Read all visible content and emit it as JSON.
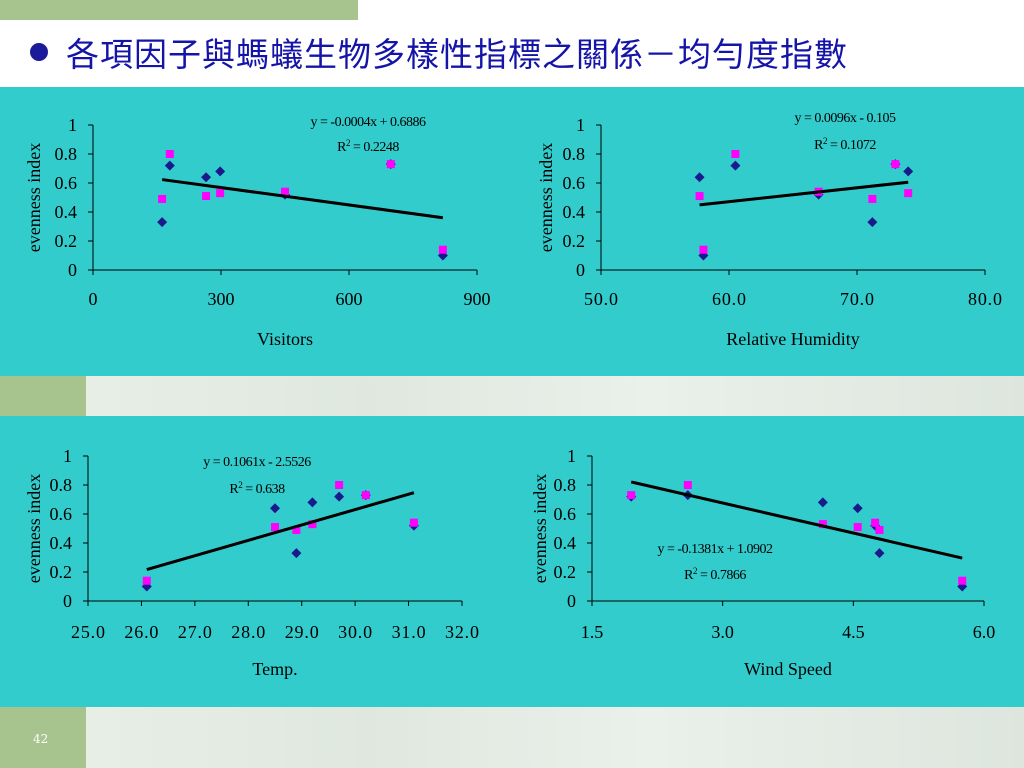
{
  "slide": {
    "title": "各項因子與螞蟻生物多樣性指標之關係－均勻度指數",
    "page_number": "42"
  },
  "colors": {
    "panel_bg": "#33cccc",
    "series_diamond": "#1a1a8c",
    "series_square": "#ff00ff",
    "title_text": "#1414a8",
    "accent_green": "#a7c48e"
  },
  "chart_data": [
    {
      "type": "scatter",
      "xlabel": "Visitors",
      "ylabel": "evenness index",
      "xlim": [
        0,
        900
      ],
      "ylim": [
        0,
        1
      ],
      "x_ticks": [
        "0",
        "300",
        "600",
        "900"
      ],
      "y_ticks": [
        "0",
        "0.2",
        "0.4",
        "0.6",
        "0.8",
        "1"
      ],
      "series": [
        {
          "marker": "diamond",
          "points": [
            [
              162,
              0.33
            ],
            [
              180,
              0.72
            ],
            [
              265,
              0.64
            ],
            [
              298,
              0.68
            ],
            [
              450,
              0.52
            ],
            [
              698,
              0.73
            ],
            [
              820,
              0.1
            ]
          ]
        },
        {
          "marker": "square",
          "points": [
            [
              162,
              0.49
            ],
            [
              180,
              0.8
            ],
            [
              265,
              0.51
            ],
            [
              298,
              0.53
            ],
            [
              450,
              0.54
            ],
            [
              698,
              0.73
            ],
            [
              820,
              0.14
            ]
          ]
        }
      ],
      "trendline": {
        "x": [
          162,
          820
        ],
        "slope": -0.0004,
        "intercept": 0.6886
      },
      "equation": "y = -0.0004x + 0.6886",
      "r2_label": "R",
      "r2_value": " = 0.2248",
      "annotation_pos": "top-right"
    },
    {
      "type": "scatter",
      "xlabel": "Relative Humidity",
      "ylabel": "evenness index",
      "xlim": [
        50,
        80
      ],
      "ylim": [
        0,
        1
      ],
      "x_ticks": [
        "50.0",
        "60.0",
        "70.0",
        "80.0"
      ],
      "y_ticks": [
        "0",
        "0.2",
        "0.4",
        "0.6",
        "0.8",
        "1"
      ],
      "series": [
        {
          "marker": "diamond",
          "points": [
            [
              57.7,
              0.64
            ],
            [
              58.0,
              0.1
            ],
            [
              60.5,
              0.72
            ],
            [
              67.0,
              0.52
            ],
            [
              71.2,
              0.33
            ],
            [
              73.0,
              0.73
            ],
            [
              74.0,
              0.68
            ]
          ]
        },
        {
          "marker": "square",
          "points": [
            [
              57.7,
              0.51
            ],
            [
              58.0,
              0.14
            ],
            [
              60.5,
              0.8
            ],
            [
              67.0,
              0.54
            ],
            [
              71.2,
              0.49
            ],
            [
              73.0,
              0.73
            ],
            [
              74.0,
              0.53
            ]
          ]
        }
      ],
      "trendline": {
        "x": [
          57.7,
          74.0
        ],
        "slope": 0.0096,
        "intercept": -0.105
      },
      "equation": "y = 0.0096x - 0.105",
      "r2_label": "R",
      "r2_value": " = 0.1072",
      "annotation_pos": "top-right"
    },
    {
      "type": "scatter",
      "xlabel": "Temp.",
      "ylabel": "evenness index",
      "xlim": [
        25,
        32
      ],
      "ylim": [
        0,
        1
      ],
      "x_ticks": [
        "25.0",
        "26.0",
        "27.0",
        "28.0",
        "29.0",
        "30.0",
        "31.0",
        "32.0"
      ],
      "y_ticks": [
        "0",
        "0.2",
        "0.4",
        "0.6",
        "0.8",
        "1"
      ],
      "series": [
        {
          "marker": "diamond",
          "points": [
            [
              26.1,
              0.1
            ],
            [
              28.5,
              0.64
            ],
            [
              28.9,
              0.33
            ],
            [
              29.2,
              0.68
            ],
            [
              29.7,
              0.72
            ],
            [
              30.2,
              0.73
            ],
            [
              31.1,
              0.52
            ]
          ]
        },
        {
          "marker": "square",
          "points": [
            [
              26.1,
              0.14
            ],
            [
              28.5,
              0.51
            ],
            [
              28.9,
              0.49
            ],
            [
              29.2,
              0.53
            ],
            [
              29.7,
              0.8
            ],
            [
              30.2,
              0.73
            ],
            [
              31.1,
              0.54
            ]
          ]
        }
      ],
      "trendline": {
        "x": [
          26.1,
          31.1
        ],
        "slope": 0.1061,
        "intercept": -2.5526
      },
      "equation": "y = 0.1061x - 2.5526",
      "r2_label": "R",
      "r2_value": " = 0.638",
      "annotation_pos": "top-left"
    },
    {
      "type": "scatter",
      "xlabel": "Wind Speed",
      "ylabel": "evenness index",
      "xlim": [
        1.5,
        6.0
      ],
      "ylim": [
        0,
        1
      ],
      "x_ticks": [
        "1.5",
        "3.0",
        "4.5",
        "6.0"
      ],
      "y_ticks": [
        "0",
        "0.2",
        "0.4",
        "0.6",
        "0.8",
        "1"
      ],
      "series": [
        {
          "marker": "diamond",
          "points": [
            [
              1.95,
              0.72
            ],
            [
              2.6,
              0.73
            ],
            [
              4.15,
              0.68
            ],
            [
              4.55,
              0.64
            ],
            [
              4.75,
              0.52
            ],
            [
              4.8,
              0.33
            ],
            [
              5.75,
              0.1
            ]
          ]
        },
        {
          "marker": "square",
          "points": [
            [
              1.95,
              0.73
            ],
            [
              2.6,
              0.8
            ],
            [
              4.15,
              0.53
            ],
            [
              4.55,
              0.51
            ],
            [
              4.75,
              0.54
            ],
            [
              4.8,
              0.49
            ],
            [
              5.75,
              0.14
            ]
          ]
        }
      ],
      "trendline": {
        "x": [
          1.95,
          5.75
        ],
        "slope": -0.1381,
        "intercept": 1.0902
      },
      "equation": "y = -0.1381x + 1.0902",
      "r2_label": "R",
      "r2_value": " = 0.7866",
      "annotation_pos": "middle-left"
    }
  ]
}
